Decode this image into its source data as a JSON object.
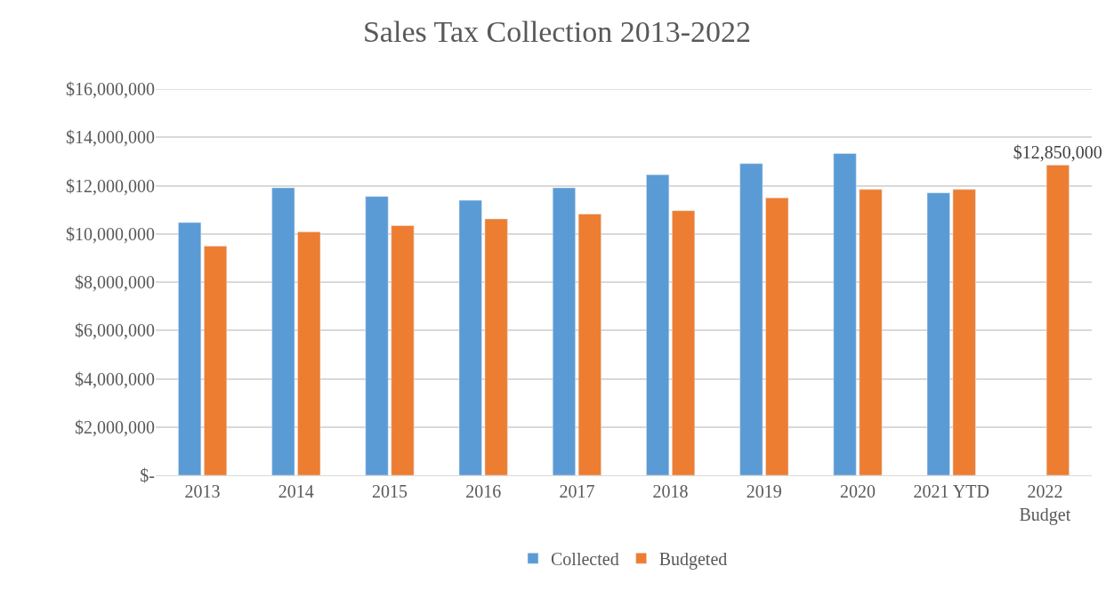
{
  "chart_data": {
    "type": "bar",
    "title": "Sales Tax Collection 2013-2022",
    "categories": [
      "2013",
      "2014",
      "2015",
      "2016",
      "2017",
      "2018",
      "2019",
      "2020",
      "2021 YTD",
      "2022\nBudget"
    ],
    "series": [
      {
        "name": "Collected",
        "color": "#5b9bd5",
        "values": [
          10470000,
          11910000,
          11550000,
          11390000,
          11910000,
          12450000,
          12910000,
          13330000,
          11700000,
          null
        ]
      },
      {
        "name": "Budgeted",
        "color": "#ed7d31",
        "values": [
          9490000,
          10080000,
          10340000,
          10620000,
          10820000,
          10960000,
          11490000,
          11840000,
          11840000,
          12850000
        ],
        "value_labels": [
          null,
          null,
          null,
          null,
          null,
          null,
          null,
          null,
          null,
          "$12,850,000"
        ]
      }
    ],
    "ylim": [
      0,
      16000000
    ],
    "yticks": [
      {
        "value": 0,
        "label": "$-"
      },
      {
        "value": 2000000,
        "label": "$2,000,000"
      },
      {
        "value": 4000000,
        "label": "$4,000,000"
      },
      {
        "value": 6000000,
        "label": "$6,000,000"
      },
      {
        "value": 8000000,
        "label": "$8,000,000"
      },
      {
        "value": 10000000,
        "label": "$10,000,000"
      },
      {
        "value": 12000000,
        "label": "$12,000,000"
      },
      {
        "value": 14000000,
        "label": "$14,000,000"
      },
      {
        "value": 16000000,
        "label": "$16,000,000"
      }
    ],
    "grid": "y",
    "legend": "bottom"
  }
}
